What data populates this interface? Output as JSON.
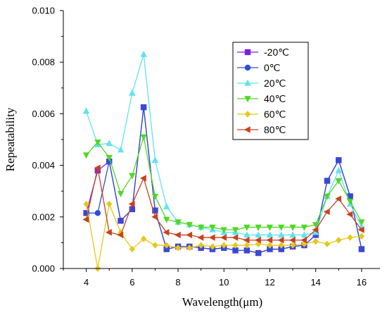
{
  "chart_data": {
    "type": "line",
    "xlabel": "Wavelength(μm)",
    "ylabel": "Repeatability",
    "xlim": [
      3,
      16.8
    ],
    "ylim": [
      0,
      0.01
    ],
    "xticks": [
      "4",
      "6",
      "8",
      "10",
      "12",
      "14",
      "16"
    ],
    "yticks": [
      "0.000",
      "0.002",
      "0.004",
      "0.006",
      "0.008",
      "0.010"
    ],
    "grid": false,
    "legend_position": "top-right",
    "x": [
      4,
      4.5,
      5,
      5.5,
      6,
      6.5,
      7,
      7.5,
      8,
      8.5,
      9,
      9.5,
      10,
      10.5,
      11,
      11.5,
      12,
      12.5,
      13,
      13.5,
      14,
      14.5,
      15,
      15.5,
      16
    ],
    "series": [
      {
        "name": "-20℃",
        "color": "#7b1fe0",
        "marker": "square",
        "values": [
          0.00215,
          0.0038,
          0.00415,
          0.00185,
          0.0023,
          0.00625,
          0.00225,
          0.00075,
          0.00085,
          0.00085,
          0.0008,
          0.00075,
          0.0008,
          0.0007,
          0.0007,
          0.0006,
          0.00075,
          0.00075,
          0.00085,
          0.0009,
          0.0013,
          0.0034,
          0.0042,
          0.0028,
          0.00075
        ]
      },
      {
        "name": "0℃",
        "color": "#2d4ed6",
        "marker": "circle",
        "values": [
          0.00215,
          0.00215,
          0.00415,
          0.00185,
          0.0023,
          0.00625,
          0.00225,
          0.00075,
          0.00085,
          0.00085,
          0.0008,
          0.00075,
          0.0008,
          0.0007,
          0.0007,
          0.0006,
          0.00075,
          0.00075,
          0.00085,
          0.0009,
          0.0013,
          0.0034,
          0.0042,
          0.0028,
          0.00075
        ]
      },
      {
        "name": "20℃",
        "color": "#5fe3f0",
        "marker": "triangle-up",
        "values": [
          0.0061,
          0.0048,
          0.00485,
          0.0046,
          0.0068,
          0.0083,
          0.0042,
          0.0024,
          0.0018,
          0.0017,
          0.0016,
          0.0015,
          0.0014,
          0.0014,
          0.0013,
          0.0013,
          0.0013,
          0.0013,
          0.0013,
          0.0013,
          0.0014,
          0.0028,
          0.0038,
          0.0025,
          0.0016
        ]
      },
      {
        "name": "40℃",
        "color": "#4fd822",
        "marker": "triangle-down",
        "values": [
          0.0044,
          0.0049,
          0.0043,
          0.0029,
          0.0036,
          0.0051,
          0.0028,
          0.0019,
          0.0018,
          0.0017,
          0.0016,
          0.0016,
          0.0015,
          0.0015,
          0.0016,
          0.0016,
          0.0016,
          0.0016,
          0.0016,
          0.0016,
          0.0017,
          0.0028,
          0.0034,
          0.0026,
          0.0018
        ]
      },
      {
        "name": "60℃",
        "color": "#e6c81a",
        "marker": "diamond",
        "values": [
          0.0025,
          0.0,
          0.0025,
          0.0014,
          0.00075,
          0.00115,
          0.0009,
          0.0009,
          0.0008,
          0.0008,
          0.0009,
          0.00085,
          0.0009,
          0.0009,
          0.0009,
          0.00095,
          0.0009,
          0.0009,
          0.0009,
          0.00095,
          0.00105,
          0.00095,
          0.0011,
          0.0012,
          0.00125
        ]
      },
      {
        "name": "80℃",
        "color": "#c8411e",
        "marker": "triangle-left",
        "values": [
          0.0019,
          0.0039,
          0.0014,
          0.0013,
          0.0025,
          0.0035,
          0.002,
          0.0014,
          0.0013,
          0.0013,
          0.0012,
          0.0012,
          0.0012,
          0.0012,
          0.0011,
          0.0011,
          0.0011,
          0.0011,
          0.0011,
          0.0011,
          0.0015,
          0.0022,
          0.0027,
          0.0021,
          0.0015
        ]
      }
    ]
  }
}
